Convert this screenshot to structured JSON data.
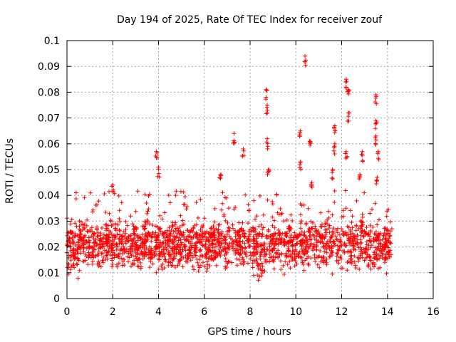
{
  "chart_data": {
    "type": "scatter",
    "title": "Day 194 of 2025, Rate Of TEC Index for receiver zouf",
    "xlabel": "GPS time / hours",
    "ylabel": "ROTI / TECUs",
    "xlim": [
      0,
      16
    ],
    "ylim": [
      0,
      0.1
    ],
    "grid": true,
    "marker": "plus",
    "marker_color": "#ff0000",
    "x_ticks": [
      {
        "value": 0,
        "label": "0"
      },
      {
        "value": 2,
        "label": "2"
      },
      {
        "value": 4,
        "label": "4"
      },
      {
        "value": 6,
        "label": "6"
      },
      {
        "value": 8,
        "label": "8"
      },
      {
        "value": 10,
        "label": "10"
      },
      {
        "value": 12,
        "label": "12"
      },
      {
        "value": 14,
        "label": "14"
      },
      {
        "value": 16,
        "label": "16"
      }
    ],
    "y_ticks": [
      {
        "value": 0,
        "label": "0"
      },
      {
        "value": 0.01,
        "label": "0.01"
      },
      {
        "value": 0.02,
        "label": "0.02"
      },
      {
        "value": 0.03,
        "label": "0.03"
      },
      {
        "value": 0.04,
        "label": "0.04"
      },
      {
        "value": 0.05,
        "label": "0.05"
      },
      {
        "value": 0.06,
        "label": "0.06"
      },
      {
        "value": 0.07,
        "label": "0.07"
      },
      {
        "value": 0.08,
        "label": "0.08"
      },
      {
        "value": 0.09,
        "label": "0.09"
      },
      {
        "value": 0.1,
        "label": "0.1"
      }
    ],
    "x_data_range": [
      0,
      14.2
    ],
    "band": {
      "low": 0.008,
      "high": 0.028
    },
    "peaks": [
      {
        "x": 2.0,
        "y": 0.044
      },
      {
        "x": 3.9,
        "y": 0.057
      },
      {
        "x": 4.0,
        "y": 0.051
      },
      {
        "x": 6.7,
        "y": 0.048
      },
      {
        "x": 7.3,
        "y": 0.064
      },
      {
        "x": 7.7,
        "y": 0.058
      },
      {
        "x": 8.7,
        "y": 0.081
      },
      {
        "x": 8.75,
        "y": 0.075
      },
      {
        "x": 8.75,
        "y": 0.062
      },
      {
        "x": 8.8,
        "y": 0.05
      },
      {
        "x": 10.2,
        "y": 0.065
      },
      {
        "x": 10.2,
        "y": 0.053
      },
      {
        "x": 10.4,
        "y": 0.094
      },
      {
        "x": 10.6,
        "y": 0.061
      },
      {
        "x": 10.7,
        "y": 0.045
      },
      {
        "x": 11.7,
        "y": 0.067
      },
      {
        "x": 11.7,
        "y": 0.06
      },
      {
        "x": 11.6,
        "y": 0.05
      },
      {
        "x": 12.2,
        "y": 0.085
      },
      {
        "x": 12.3,
        "y": 0.081
      },
      {
        "x": 12.3,
        "y": 0.072
      },
      {
        "x": 12.2,
        "y": 0.057
      },
      {
        "x": 12.9,
        "y": 0.057
      },
      {
        "x": 12.8,
        "y": 0.048
      },
      {
        "x": 13.5,
        "y": 0.079
      },
      {
        "x": 13.5,
        "y": 0.069
      },
      {
        "x": 13.5,
        "y": 0.063
      },
      {
        "x": 13.6,
        "y": 0.057
      },
      {
        "x": 13.55,
        "y": 0.047
      }
    ]
  }
}
